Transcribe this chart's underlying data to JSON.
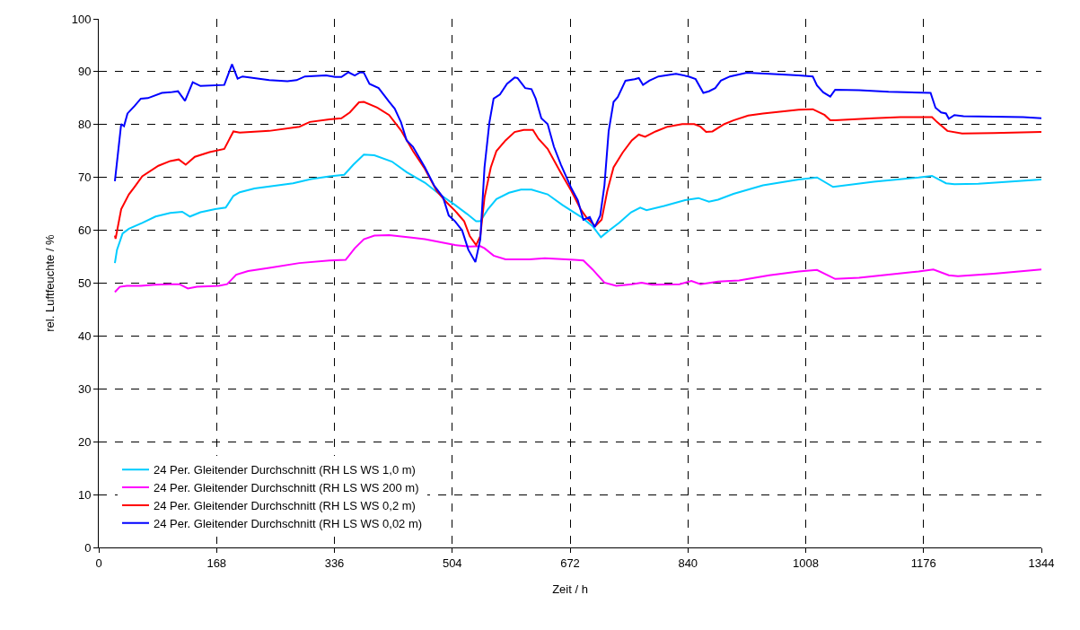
{
  "chart_data": {
    "type": "line",
    "xlabel": "Zeit / h",
    "ylabel": "rel. Luftfeuchte / %",
    "xlim": [
      0,
      1344
    ],
    "xticks": [
      0,
      168,
      336,
      504,
      672,
      840,
      1008,
      1176,
      1344
    ],
    "ylim": [
      0,
      100
    ],
    "yticks": [
      0,
      10,
      20,
      30,
      40,
      50,
      60,
      70,
      80,
      90,
      100
    ],
    "grid": true,
    "legend": "bottom left",
    "series": [
      {
        "name": "24 Per. Gleitender Durchschnitt (RH LS WS 1,0 m)",
        "color": "#00ccff",
        "x": [
          23,
          26,
          34,
          43,
          62,
          81,
          102,
          119,
          130,
          145,
          166,
          181,
          192,
          201,
          222,
          277,
          303,
          329,
          350,
          363,
          378,
          393,
          418,
          439,
          465,
          486,
          508,
          525,
          538,
          544,
          555,
          567,
          585,
          602,
          617,
          640,
          661,
          687,
          704,
          716,
          725,
          742,
          759,
          772,
          781,
          806,
          836,
          855,
          870,
          883,
          905,
          947,
          998,
          1024,
          1047,
          1105,
          1169,
          1188,
          1208,
          1220,
          1254,
          1297,
          1344
        ],
        "values": [
          53.8,
          56.3,
          59.4,
          60.3,
          61.4,
          62.6,
          63.3,
          63.5,
          62.6,
          63.4,
          64.0,
          64.3,
          66.5,
          67.2,
          67.9,
          68.9,
          69.7,
          70.2,
          70.5,
          72.4,
          74.3,
          74.2,
          73.0,
          71.0,
          69.0,
          66.8,
          64.8,
          63.1,
          61.7,
          61.7,
          64.0,
          65.9,
          67.1,
          67.7,
          67.7,
          66.8,
          64.8,
          62.6,
          60.8,
          58.7,
          59.7,
          61.4,
          63.4,
          64.3,
          63.8,
          64.6,
          65.7,
          66.1,
          65.4,
          65.8,
          66.9,
          68.5,
          69.6,
          70.0,
          68.2,
          69.2,
          70.0,
          70.3,
          68.9,
          68.7,
          68.8,
          69.2,
          69.6
        ]
      },
      {
        "name": "24 Per. Gleitender Durchschnitt (RH LS WS 200 m)",
        "color": "#ff00ff",
        "x": [
          23,
          30,
          40,
          60,
          80,
          100,
          115,
          127,
          140,
          171,
          183,
          196,
          213,
          243,
          286,
          329,
          352,
          365,
          378,
          393,
          414,
          446,
          465,
          508,
          529,
          544,
          550,
          563,
          580,
          614,
          636,
          678,
          691,
          704,
          721,
          738,
          760,
          774,
          789,
          828,
          845,
          858,
          883,
          913,
          956,
          998,
          1024,
          1050,
          1084,
          1169,
          1190,
          1212,
          1225,
          1276,
          1344
        ],
        "values": [
          48.3,
          49.3,
          49.5,
          49.5,
          49.7,
          49.8,
          49.8,
          49.0,
          49.3,
          49.5,
          49.8,
          51.6,
          52.3,
          52.9,
          53.8,
          54.3,
          54.4,
          56.6,
          58.3,
          59.0,
          59.1,
          58.6,
          58.3,
          57.2,
          56.9,
          57.0,
          56.6,
          55.2,
          54.5,
          54.5,
          54.7,
          54.4,
          54.3,
          52.6,
          50.1,
          49.5,
          49.8,
          50.1,
          49.7,
          49.8,
          50.4,
          49.8,
          50.3,
          50.5,
          51.5,
          52.2,
          52.5,
          50.8,
          51.0,
          52.2,
          52.6,
          51.5,
          51.3,
          51.8,
          52.6
        ]
      },
      {
        "name": "24 Per. Gleitender Durchschnitt (RH LS WS 0,2 m)",
        "color": "#ff0000",
        "x": [
          23,
          24,
          32,
          43,
          51,
          62,
          85,
          102,
          114,
          124,
          137,
          158,
          179,
          192,
          201,
          243,
          286,
          301,
          329,
          346,
          358,
          371,
          378,
          397,
          414,
          431,
          448,
          465,
          482,
          495,
          508,
          521,
          529,
          538,
          544,
          550,
          559,
          567,
          580,
          593,
          606,
          619,
          627,
          640,
          657,
          674,
          687,
          696,
          708,
          717,
          725,
          734,
          747,
          760,
          770,
          779,
          794,
          811,
          832,
          849,
          858,
          866,
          875,
          892,
          905,
          926,
          947,
          977,
          998,
          1018,
          1035,
          1043,
          1050,
          1105,
          1143,
          1188,
          1195,
          1210,
          1231,
          1276,
          1344
        ],
        "values": [
          59.0,
          58.4,
          64.0,
          66.8,
          68.2,
          70.2,
          72.2,
          73.1,
          73.4,
          72.4,
          73.9,
          74.8,
          75.4,
          78.7,
          78.5,
          78.8,
          79.6,
          80.5,
          81.0,
          81.2,
          82.3,
          84.2,
          84.3,
          83.2,
          81.8,
          78.9,
          75.0,
          71.6,
          67.4,
          65.4,
          63.7,
          61.7,
          58.9,
          57.2,
          58.9,
          66.2,
          71.9,
          75.0,
          77.0,
          78.6,
          79.0,
          79.0,
          77.3,
          75.4,
          71.3,
          67.4,
          64.0,
          62.3,
          60.8,
          62.0,
          67.4,
          71.9,
          74.7,
          77.0,
          78.1,
          77.7,
          78.7,
          79.6,
          80.1,
          80.1,
          79.6,
          78.6,
          78.7,
          80.1,
          80.8,
          81.7,
          82.1,
          82.5,
          82.8,
          82.9,
          81.8,
          80.8,
          80.8,
          81.2,
          81.4,
          81.4,
          80.5,
          78.8,
          78.3,
          78.4,
          78.6
        ]
      },
      {
        "name": "24 Per. Gleitender Durchschnitt (RH LS WS 0,02 m)",
        "color": "#0000ff",
        "x": [
          23,
          32,
          36,
          41,
          51,
          60,
          70,
          90,
          102,
          113,
          123,
          134,
          145,
          179,
          190,
          198,
          205,
          243,
          269,
          282,
          294,
          324,
          337,
          346,
          356,
          365,
          373,
          378,
          386,
          399,
          414,
          422,
          431,
          439,
          448,
          465,
          478,
          491,
          499,
          508,
          518,
          527,
          537,
          544,
          550,
          557,
          563,
          572,
          582,
          593,
          597,
          608,
          617,
          623,
          631,
          640,
          649,
          659,
          674,
          683,
          691,
          700,
          707,
          715,
          721,
          727,
          734,
          740,
          751,
          764,
          770,
          776,
          785,
          798,
          823,
          841,
          851,
          862,
          870,
          879,
          887,
          900,
          924,
          956,
          998,
          1018,
          1024,
          1033,
          1043,
          1050,
          1084,
          1126,
          1186,
          1193,
          1201,
          1208,
          1212,
          1220,
          1233,
          1276,
          1318,
          1344
        ],
        "values": [
          69.3,
          80.1,
          79.7,
          82.1,
          83.5,
          84.9,
          85.0,
          86.0,
          86.1,
          86.3,
          84.5,
          88.0,
          87.3,
          87.5,
          91.4,
          88.7,
          89.1,
          88.4,
          88.2,
          88.4,
          89.1,
          89.3,
          89.0,
          89.0,
          89.9,
          89.3,
          89.9,
          89.8,
          87.7,
          86.9,
          84.3,
          83.0,
          80.4,
          77.0,
          75.8,
          71.9,
          68.5,
          66.2,
          62.8,
          61.7,
          60.0,
          56.3,
          54.0,
          58.3,
          71.9,
          80.4,
          84.9,
          85.7,
          87.7,
          88.9,
          88.8,
          86.9,
          86.7,
          84.9,
          81.2,
          80.1,
          75.8,
          72.4,
          67.9,
          65.7,
          62.0,
          62.5,
          60.6,
          62.8,
          68.5,
          78.7,
          84.3,
          85.2,
          88.3,
          88.6,
          88.8,
          87.5,
          88.3,
          89.1,
          89.6,
          89.1,
          88.6,
          86.0,
          86.3,
          86.9,
          88.3,
          89.1,
          89.8,
          89.6,
          89.3,
          89.1,
          87.4,
          86.1,
          85.3,
          86.6,
          86.5,
          86.2,
          86.0,
          83.2,
          82.3,
          82.1,
          81.1,
          81.8,
          81.6,
          81.5,
          81.4,
          81.2
        ]
      }
    ]
  }
}
